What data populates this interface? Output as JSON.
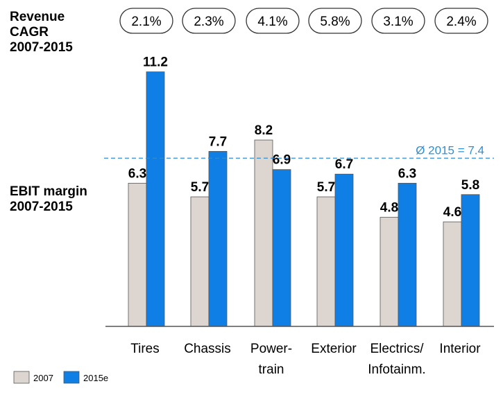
{
  "revenue_label": {
    "line1": "Revenue",
    "line2": "CAGR",
    "line3": "2007-2015"
  },
  "ebit_label": {
    "line1": "EBIT margin",
    "line2": "2007-2015"
  },
  "average_label": "Ø 2015 = 7.4",
  "colors": {
    "series_2007": "#ddd5cf",
    "series_2015e": "#0f7fe6",
    "bar_stroke": "#555555",
    "avg_line": "#2f8fd6"
  },
  "chart_data": {
    "type": "bar",
    "categories": [
      "Tires",
      "Chassis",
      "Power-train",
      "Exterior",
      "Electrics/Infotainm.",
      "Interior"
    ],
    "category_lines": [
      [
        "Tires"
      ],
      [
        "Chassis"
      ],
      [
        "Power-",
        "train"
      ],
      [
        "Exterior"
      ],
      [
        "Electrics/",
        "Infotainm."
      ],
      [
        "Interior"
      ]
    ],
    "revenue_cagr": [
      "2.1%",
      "2.3%",
      "4.1%",
      "5.8%",
      "3.1%",
      "2.4%"
    ],
    "series": [
      {
        "name": "2007",
        "values": [
          6.3,
          5.7,
          8.2,
          5.7,
          4.8,
          4.6
        ],
        "labels": [
          "6.3",
          "5.7",
          "8.2",
          "5.7",
          "4.8",
          "4.6"
        ]
      },
      {
        "name": "2015e",
        "values": [
          11.2,
          7.7,
          6.9,
          6.7,
          6.3,
          5.8
        ],
        "labels": [
          "11.2",
          "7.7",
          "6.9",
          "6.7",
          "6.3",
          "5.8"
        ]
      }
    ],
    "average_2015": 7.4,
    "ylim": [
      0,
      11.2
    ],
    "legend_position": "bottom-left",
    "grid": false
  }
}
